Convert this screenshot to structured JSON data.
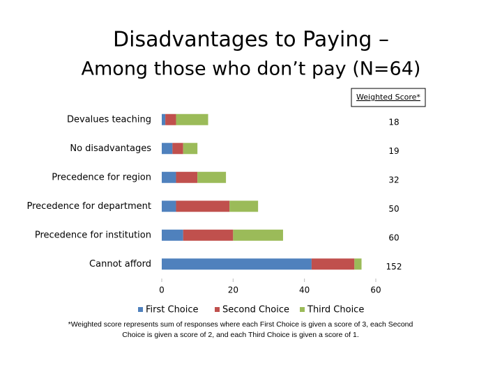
{
  "chart_data": {
    "type": "stacked-barh",
    "title": "Disadvantages to Paying –",
    "subtitle": "Among those who don’t pay (N=64)",
    "categories": [
      "Devalues teaching",
      "No disadvantages",
      "Precedence for region",
      "Precedence for department",
      "Precedence for institution",
      "Cannot afford"
    ],
    "series": [
      {
        "name": "First Choice",
        "color": "#4f81bd",
        "values": [
          1,
          3,
          4,
          4,
          6,
          42
        ]
      },
      {
        "name": "Second Choice",
        "color": "#c0504d",
        "values": [
          3,
          3,
          6,
          15,
          14,
          12
        ]
      },
      {
        "name": "Third Choice",
        "color": "#9bbb59",
        "values": [
          9,
          4,
          8,
          8,
          14,
          2
        ]
      }
    ],
    "score_label": "Weighted Score*",
    "weighted_scores": [
      18,
      19,
      32,
      50,
      60,
      152
    ],
    "xlim": [
      0,
      60
    ],
    "xticks": [
      0,
      20,
      40,
      60
    ],
    "legend": "bottom",
    "footnote": "*Weighted score represents sum of responses where each First Choice is given a score of 3, each Second Choice is given a score of 2, and each Third Choice is given a score of 1."
  }
}
